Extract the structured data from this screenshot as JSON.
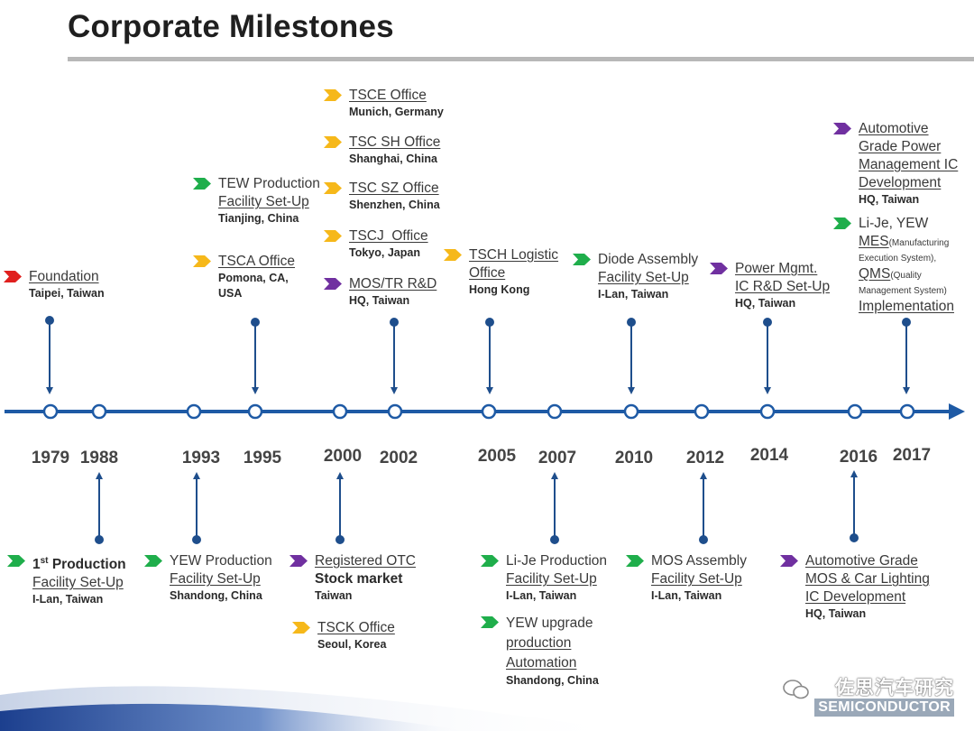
{
  "title": "Corporate Milestones",
  "colors": {
    "red": "#e0201e",
    "green": "#1fae4b",
    "yellow": "#f6b81a",
    "purple": "#7030a0",
    "axis": "#1e5aa5",
    "arrow": "#1e4e8c"
  },
  "years": [
    "1979",
    "1988",
    "1993",
    "1995",
    "2000",
    "2002",
    "2005",
    "2007",
    "2010",
    "2012",
    "2014",
    "2016",
    "2017"
  ],
  "top": {
    "e1979": {
      "title": "Foundation",
      "loc": "Taipei, Taiwan"
    },
    "e1995a": {
      "l1": "TEW Production",
      "l2": "Facility Set-Up",
      "loc": "Tianjing, China"
    },
    "e1995b": {
      "title": "TSCA Office",
      "loc1": "Pomona, CA,",
      "loc2": "USA"
    },
    "e2002a": {
      "title": "TSCE Office",
      "loc": "Munich, Germany"
    },
    "e2002b": {
      "title": "TSC SH Office",
      "loc": "Shanghai, China"
    },
    "e2002c": {
      "title": "TSC SZ Office",
      "loc": "Shenzhen, China"
    },
    "e2002d": {
      "title": "TSCJ  Office",
      "loc": "Tokyo, Japan"
    },
    "e2002e": {
      "title": "MOS/TR R&D",
      "loc": "HQ, Taiwan"
    },
    "e2005": {
      "l1": "TSCH Logistic",
      "l2": "Office",
      "loc": "Hong Kong"
    },
    "e2010": {
      "l1": "Diode Assembly",
      "l2": "Facility Set-Up",
      "loc": "I-Lan, Taiwan"
    },
    "e2014": {
      "l1": "Power Mgmt.",
      "l2": "IC R&D Set-Up",
      "loc": "HQ, Taiwan"
    },
    "e2017a": {
      "l1": "Automotive",
      "l2": "Grade Power",
      "l3": "Management IC",
      "l4": "Development",
      "loc": "HQ, Taiwan"
    },
    "e2017b": {
      "l1": "Li-Je, YEW",
      "mes": "MES",
      "mes_note1": "(Manufacturing",
      "mes_note2": "Execution System),",
      "qms": "QMS",
      "qms_note1": "(Quality",
      "qms_note2": "Management System)",
      "impl": "Implementation"
    }
  },
  "bottom": {
    "e1988": {
      "l1_main": "1",
      "l1_sup": "st",
      "l1_rest": " Production",
      "l2": "Facility Set-Up",
      "loc": "I-Lan, Taiwan"
    },
    "e1993": {
      "l1": "YEW Production",
      "l2": "Facility Set-Up",
      "loc": "Shandong, China"
    },
    "e2000a": {
      "l1": "Registered OTC",
      "l2": "Stock market",
      "loc": "Taiwan"
    },
    "e2000b": {
      "title": "TSCK Office",
      "loc": "Seoul, Korea"
    },
    "e2007a": {
      "l1": "Li-Je Production",
      "l2": "Facility Set-Up",
      "loc": "I-Lan, Taiwan"
    },
    "e2007b": {
      "l1": "YEW upgrade",
      "l2": "production",
      "l3": "Automation",
      "loc": "Shandong, China"
    },
    "e2012": {
      "l1": "MOS Assembly",
      "l2": "Facility Set-Up",
      "loc": "I-Lan, Taiwan"
    },
    "e2016": {
      "l1": "Automotive Grade",
      "l2": "MOS & Car Lighting",
      "l3": "IC Development",
      "loc": "HQ, Taiwan"
    }
  },
  "logo": {
    "cn": "佐思汽车研究",
    "en": "SEMICONDUCTOR"
  }
}
